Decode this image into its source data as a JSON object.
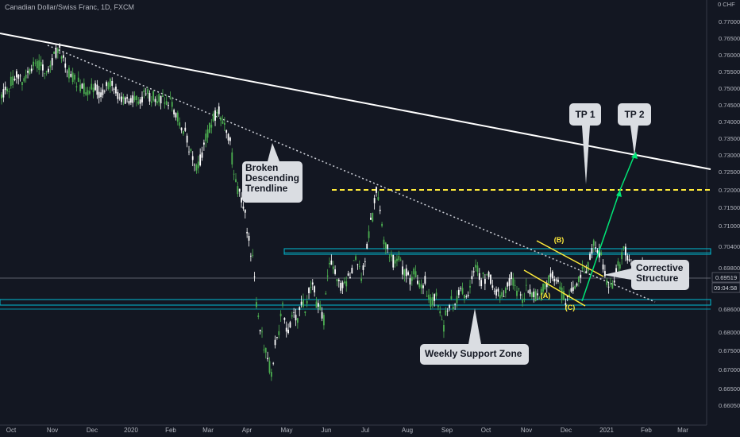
{
  "header": {
    "title": "Canadian Dollar/Swiss Franc, 1D, FXCM",
    "currency": "CHF"
  },
  "chart_data": {
    "type": "candlestick",
    "symbol": "CADCHF",
    "ylim": [
      0.655,
      0.775
    ],
    "y_ticks": [
      "0.77000",
      "0.76500",
      "0.76000",
      "0.75500",
      "0.75000",
      "0.74500",
      "0.74000",
      "0.73500",
      "0.73000",
      "0.72500",
      "0.72000",
      "0.71500",
      "0.71000",
      "0.70400",
      "0.69800",
      "0.69519",
      "0.68600",
      "0.68000",
      "0.67500",
      "0.67000",
      "0.66500",
      "0.66050"
    ],
    "x_labels": [
      "Oct",
      "Nov",
      "Dec",
      "2020",
      "Feb",
      "Mar",
      "Apr",
      "May",
      "Jun",
      "Jul",
      "Aug",
      "Sep",
      "Oct",
      "Nov",
      "Dec",
      "2021",
      "Feb",
      "Mar"
    ],
    "current_price": "0.69519",
    "countdown": "09:04:58",
    "levels": {
      "tp_line": 0.72,
      "resistance_zone": [
        0.7035,
        0.7048
      ],
      "support_zone": [
        0.6862,
        0.6876
      ]
    },
    "annotations": {
      "broken_trendline": "Broken\nDescending\nTrendline",
      "corrective": "Corrective\nStructure",
      "support": "Weekly Support Zone",
      "tp1": "TP 1",
      "tp2": "TP 2",
      "wave_a": "(A)",
      "wave_b": "(B)",
      "wave_c": "(C)"
    },
    "colors": {
      "up": "#26a69a",
      "down": "#ef5350",
      "candle_up": "#4caf50",
      "candle_down": "#ffffff",
      "zone": "#00bcd4",
      "tp": "#ffeb3b",
      "arrow": "#00e676"
    },
    "price_path": [
      [
        0,
        0.749
      ],
      [
        4,
        0.752
      ],
      [
        8,
        0.755
      ],
      [
        12,
        0.753
      ],
      [
        16,
        0.757
      ],
      [
        20,
        0.758
      ],
      [
        24,
        0.757
      ],
      [
        28,
        0.761
      ],
      [
        31,
        0.764
      ],
      [
        34,
        0.758
      ],
      [
        38,
        0.754
      ],
      [
        42,
        0.752
      ],
      [
        46,
        0.75
      ],
      [
        50,
        0.751
      ],
      [
        54,
        0.749
      ],
      [
        58,
        0.753
      ],
      [
        62,
        0.749
      ],
      [
        66,
        0.748
      ],
      [
        70,
        0.747
      ],
      [
        74,
        0.748
      ],
      [
        78,
        0.749
      ],
      [
        82,
        0.748
      ],
      [
        86,
        0.748
      ],
      [
        90,
        0.747
      ],
      [
        94,
        0.742
      ],
      [
        98,
        0.737
      ],
      [
        102,
        0.73
      ],
      [
        104,
        0.726
      ],
      [
        106,
        0.729
      ],
      [
        108,
        0.734
      ],
      [
        110,
        0.737
      ],
      [
        112,
        0.74
      ],
      [
        114,
        0.743
      ],
      [
        116,
        0.745
      ],
      [
        118,
        0.741
      ],
      [
        120,
        0.738
      ],
      [
        122,
        0.734
      ],
      [
        124,
        0.725
      ],
      [
        126,
        0.72
      ],
      [
        128,
        0.717
      ],
      [
        130,
        0.712
      ],
      [
        132,
        0.704
      ],
      [
        134,
        0.698
      ],
      [
        136,
        0.685
      ],
      [
        138,
        0.678
      ],
      [
        140,
        0.672
      ],
      [
        142,
        0.668
      ],
      [
        144,
        0.663
      ],
      [
        146,
        0.673
      ],
      [
        148,
        0.676
      ],
      [
        150,
        0.684
      ],
      [
        152,
        0.676
      ],
      [
        154,
        0.678
      ],
      [
        156,
        0.682
      ],
      [
        158,
        0.681
      ],
      [
        160,
        0.686
      ],
      [
        162,
        0.683
      ],
      [
        164,
        0.69
      ],
      [
        166,
        0.692
      ],
      [
        168,
        0.685
      ],
      [
        170,
        0.683
      ],
      [
        172,
        0.68
      ],
      [
        174,
        0.693
      ],
      [
        176,
        0.698
      ],
      [
        178,
        0.694
      ],
      [
        180,
        0.691
      ],
      [
        182,
        0.69
      ],
      [
        184,
        0.692
      ],
      [
        186,
        0.694
      ],
      [
        188,
        0.697
      ],
      [
        190,
        0.699
      ],
      [
        192,
        0.693
      ],
      [
        194,
        0.697
      ],
      [
        196,
        0.707
      ],
      [
        198,
        0.712
      ],
      [
        200,
        0.719
      ],
      [
        202,
        0.714
      ],
      [
        204,
        0.705
      ],
      [
        206,
        0.702
      ],
      [
        208,
        0.699
      ],
      [
        210,
        0.697
      ],
      [
        212,
        0.698
      ],
      [
        214,
        0.695
      ],
      [
        216,
        0.694
      ],
      [
        218,
        0.692
      ],
      [
        220,
        0.694
      ],
      [
        222,
        0.692
      ],
      [
        224,
        0.69
      ],
      [
        226,
        0.692
      ],
      [
        228,
        0.686
      ],
      [
        230,
        0.686
      ],
      [
        232,
        0.688
      ],
      [
        234,
        0.682
      ],
      [
        236,
        0.678
      ],
      [
        238,
        0.684
      ],
      [
        240,
        0.686
      ],
      [
        242,
        0.684
      ],
      [
        244,
        0.688
      ],
      [
        246,
        0.689
      ],
      [
        248,
        0.688
      ],
      [
        250,
        0.69
      ],
      [
        252,
        0.694
      ],
      [
        254,
        0.696
      ],
      [
        256,
        0.692
      ],
      [
        258,
        0.693
      ],
      [
        260,
        0.694
      ],
      [
        262,
        0.691
      ],
      [
        264,
        0.689
      ],
      [
        266,
        0.688
      ],
      [
        268,
        0.688
      ],
      [
        270,
        0.691
      ],
      [
        272,
        0.693
      ],
      [
        274,
        0.69
      ],
      [
        276,
        0.688
      ],
      [
        278,
        0.686
      ],
      [
        280,
        0.69
      ],
      [
        282,
        0.689
      ],
      [
        284,
        0.688
      ],
      [
        286,
        0.687
      ],
      [
        288,
        0.689
      ],
      [
        290,
        0.69
      ],
      [
        292,
        0.692
      ],
      [
        294,
        0.693
      ],
      [
        296,
        0.692
      ],
      [
        298,
        0.689
      ],
      [
        300,
        0.687
      ],
      [
        302,
        0.686
      ],
      [
        304,
        0.688
      ],
      [
        306,
        0.69
      ],
      [
        308,
        0.692
      ],
      [
        310,
        0.695
      ],
      [
        312,
        0.694
      ],
      [
        314,
        0.7
      ],
      [
        316,
        0.704
      ],
      [
        318,
        0.701
      ],
      [
        320,
        0.699
      ],
      [
        322,
        0.694
      ],
      [
        324,
        0.691
      ],
      [
        326,
        0.691
      ],
      [
        328,
        0.695
      ],
      [
        330,
        0.697
      ],
      [
        332,
        0.703
      ],
      [
        334,
        0.7
      ],
      [
        336,
        0.697
      ],
      [
        338,
        0.693
      ],
      [
        340,
        0.694
      ],
      [
        342,
        0.696
      ],
      [
        344,
        0.695
      ]
    ]
  }
}
